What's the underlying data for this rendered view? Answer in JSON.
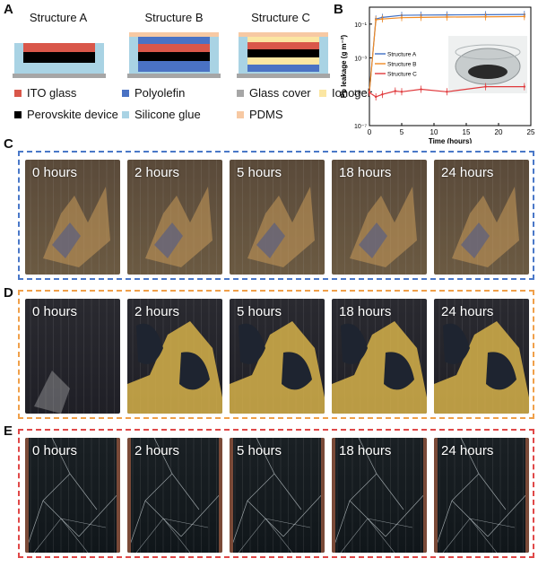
{
  "panels": {
    "A": "A",
    "B": "B",
    "C": "C",
    "D": "D",
    "E": "E"
  },
  "structures": {
    "titles": [
      "Structure A",
      "Structure B",
      "Structure C"
    ]
  },
  "legend": {
    "items": [
      {
        "label": "ITO glass",
        "color": "#d9574a"
      },
      {
        "label": "Polyolefin",
        "color": "#4a72c4"
      },
      {
        "label": "Glass cover",
        "color": "#a6a6a6"
      },
      {
        "label": "Ionogel",
        "color": "#fbe6a2"
      },
      {
        "label": "Perovskite device",
        "color": "#000000"
      },
      {
        "label": "Silicone glue",
        "color": "#a9d3e4"
      },
      {
        "label": "PDMS",
        "color": "#f7c9a3"
      }
    ]
  },
  "chart_data": {
    "type": "line",
    "xlabel": "Time (hours)",
    "ylabel": "Pb leakage (g m⁻²)",
    "xlim": [
      0,
      25
    ],
    "ylim_log10": [
      -7,
      0
    ],
    "yscale": "log",
    "x_ticks": [
      "0",
      "5",
      "10",
      "15",
      "20",
      "25"
    ],
    "y_ticks": [
      "10⁻⁷",
      "10⁻⁵",
      "10⁻³",
      "10⁻¹"
    ],
    "y_tick_values": [
      1e-07,
      1e-05,
      0.001,
      0.1
    ],
    "series": [
      {
        "name": "Structure A",
        "color": "#3f6fc4",
        "x": [
          0,
          1,
          2,
          5,
          8,
          12,
          18,
          24
        ],
        "y": [
          1e-05,
          0.2,
          0.25,
          0.33,
          0.34,
          0.35,
          0.36,
          0.37
        ]
      },
      {
        "name": "Structure B",
        "color": "#f08a24",
        "x": [
          0,
          1,
          2,
          5,
          8,
          12,
          18,
          24
        ],
        "y": [
          1e-05,
          0.18,
          0.2,
          0.24,
          0.25,
          0.26,
          0.27,
          0.28
        ]
      },
      {
        "name": "Structure C",
        "color": "#e0383b",
        "x": [
          0,
          1,
          2,
          4,
          5,
          8,
          12,
          18,
          24
        ],
        "y": [
          9e-06,
          5e-06,
          7e-06,
          1.1e-05,
          1e-05,
          1.4e-05,
          1e-05,
          2e-05,
          2e-05
        ]
      }
    ],
    "legend_position": "center-left"
  },
  "rows": {
    "C": {
      "border": "#4a78c8",
      "style": "amber-crack",
      "labels": [
        "0 hours",
        "2 hours",
        "5 hours",
        "18 hours",
        "24 hours"
      ]
    },
    "D": {
      "border": "#f0a04a",
      "style": "yellow-gel",
      "labels": [
        "0 hours",
        "2 hours",
        "5 hours",
        "18 hours",
        "24 hours"
      ]
    },
    "E": {
      "border": "#e04848",
      "style": "dark-cracked",
      "labels": [
        "0 hours",
        "2 hours",
        "5 hours",
        "18 hours",
        "24 hours"
      ]
    }
  }
}
